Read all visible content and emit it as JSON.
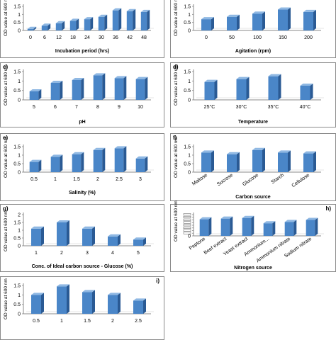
{
  "chart_data": [
    {
      "id": "a",
      "panel_label": "",
      "type": "bar",
      "ylabel": "OD value at 600 nm",
      "xlabel": "Incubation period (hrs)",
      "categories": [
        "0",
        "6",
        "12",
        "18",
        "24",
        "30",
        "36",
        "42",
        "48"
      ],
      "values": [
        0.1,
        0.3,
        0.45,
        0.6,
        0.7,
        0.85,
        1.25,
        1.2,
        1.15
      ],
      "yticks": [
        "0",
        "0.5",
        "1",
        "1.5"
      ],
      "ylim": [
        0,
        1.5
      ],
      "rotate_ticks": false
    },
    {
      "id": "b",
      "panel_label": "",
      "type": "bar",
      "ylabel": "OD value at 600 nm",
      "xlabel": "Agitation (rpm)",
      "categories": [
        "0",
        "50",
        "100",
        "150",
        "200"
      ],
      "values": [
        0.7,
        0.85,
        1.05,
        1.3,
        1.15
      ],
      "yticks": [
        "0",
        "0.5",
        "1",
        "1.5"
      ],
      "ylim": [
        0,
        1.5
      ],
      "rotate_ticks": false
    },
    {
      "id": "c",
      "panel_label": "c)",
      "type": "bar",
      "ylabel": "OD value at 600 nm",
      "xlabel": "pH",
      "categories": [
        "5",
        "6",
        "7",
        "8",
        "9",
        "10"
      ],
      "values": [
        0.45,
        0.9,
        1.05,
        1.3,
        1.15,
        1.1
      ],
      "yticks": [
        "0",
        "0.5",
        "1",
        "1.5"
      ],
      "ylim": [
        0,
        1.5
      ],
      "rotate_ticks": false
    },
    {
      "id": "d",
      "panel_label": "d)",
      "type": "bar",
      "ylabel": "OD value at 600 nm",
      "xlabel": "Temperature",
      "categories": [
        "25°C",
        "30°C",
        "35°C",
        "40°C"
      ],
      "values": [
        0.95,
        1.1,
        1.25,
        0.75
      ],
      "yticks": [
        "0",
        "0.5",
        "1",
        "1.5"
      ],
      "ylim": [
        0,
        1.5
      ],
      "rotate_ticks": false
    },
    {
      "id": "e",
      "panel_label": "e)",
      "type": "bar",
      "ylabel": "OD value at 600 nm",
      "xlabel": "Salinity (%)",
      "categories": [
        "0.5",
        "1",
        "1.5",
        "2",
        "2.5",
        "3"
      ],
      "values": [
        0.6,
        0.9,
        1.05,
        1.3,
        1.4,
        0.8
      ],
      "yticks": [
        "0",
        "0.5",
        "1",
        "1.5"
      ],
      "ylim": [
        0,
        1.5
      ],
      "rotate_ticks": false
    },
    {
      "id": "f",
      "panel_label": "f)",
      "type": "bar",
      "ylabel": "OD value at 600 nm",
      "xlabel": "Carbon source",
      "categories": [
        "Maltose",
        "Sucrose",
        "Glucose",
        "Starch",
        "Cellulose"
      ],
      "values": [
        1.15,
        1.05,
        1.3,
        1.15,
        1.1
      ],
      "yticks": [
        "0",
        "0.5",
        "1",
        "1.5"
      ],
      "ylim": [
        0,
        1.5
      ],
      "rotate_ticks": true
    },
    {
      "id": "g",
      "panel_label": "g)",
      "type": "bar",
      "ylabel": "OD value at 600 nm",
      "xlabel": "Conc. of Ideal carbon source - Glucose  (%)",
      "categories": [
        "1",
        "2",
        "3",
        "4",
        "5"
      ],
      "values": [
        1.1,
        1.5,
        1.1,
        0.6,
        0.4
      ],
      "yticks": [
        "0",
        "0.5",
        "1",
        "1.5",
        "2"
      ],
      "ylim": [
        0,
        2
      ],
      "rotate_ticks": false
    },
    {
      "id": "h",
      "panel_label": "h)",
      "type": "bar",
      "ylabel": "OD value at 600 nm",
      "xlabel": "Nitrogen source",
      "categories": [
        "Peptone",
        "Beef extract",
        "Yeast extract",
        "Ammonium...",
        "Ammonium nitrate",
        "Sodium nitrate"
      ],
      "values": [
        1.25,
        1.3,
        1.35,
        0.95,
        1.05,
        1.2
      ],
      "yticks": [
        "0",
        "",
        "",
        "",
        "",
        "",
        "",
        "",
        ""
      ],
      "ylim": [
        0,
        1.6
      ],
      "rotate_ticks": true
    },
    {
      "id": "i",
      "panel_label": "i)",
      "type": "bar",
      "ylabel": "OD value at 600 nm",
      "xlabel": "",
      "categories": [
        "0.5",
        "1",
        "1.5",
        "2",
        "2.5"
      ],
      "values": [
        1.0,
        1.45,
        1.15,
        1.0,
        0.7
      ],
      "yticks": [
        "0",
        "0.5",
        "1",
        "1.5"
      ],
      "ylim": [
        0,
        1.5
      ],
      "rotate_ticks": false
    }
  ],
  "colors": {
    "bar_front": "#4a86c8",
    "bar_side": "#2a5a94",
    "bar_top": "#8fb8e3",
    "axis": "#888888"
  }
}
